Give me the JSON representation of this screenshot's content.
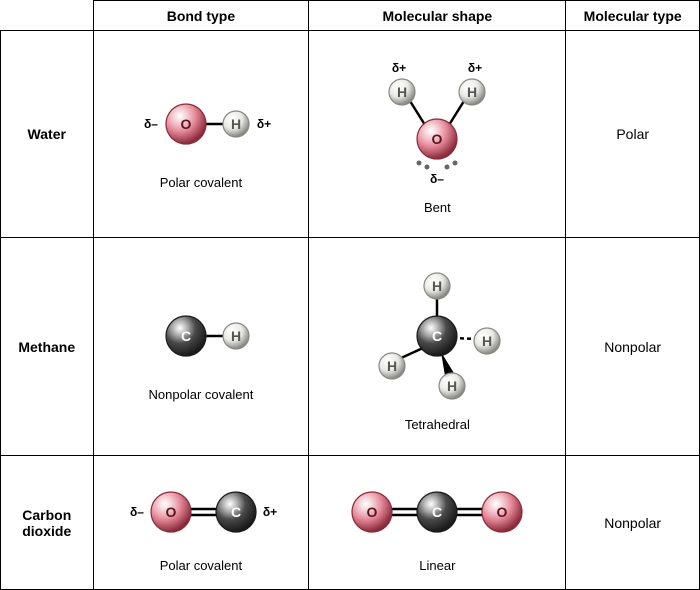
{
  "headers": {
    "bond": "Bond type",
    "shape": "Molecular shape",
    "type": "Molecular type"
  },
  "rows": {
    "water": {
      "name": "Water",
      "bond_caption": "Polar covalent",
      "shape_caption": "Bent",
      "mol_type": "Polar",
      "delta_minus": "δ–",
      "delta_plus": "δ+"
    },
    "methane": {
      "name": "Methane",
      "bond_caption": "Nonpolar covalent",
      "shape_caption": "Tetrahedral",
      "mol_type": "Nonpolar"
    },
    "co2": {
      "name": "Carbon dioxide",
      "bond_caption": "Polar covalent",
      "shape_caption": "Linear",
      "mol_type": "Nonpolar",
      "delta_minus": "δ–",
      "delta_plus": "δ+"
    }
  },
  "atoms": {
    "O": {
      "label": "O",
      "fill": "#e68a9a",
      "stroke": "#8a2a3a",
      "text": "#5a1520",
      "r": 20
    },
    "C": {
      "label": "C",
      "fill": "#4a4a4a",
      "stroke": "#1a1a1a",
      "text": "#ffffff",
      "r": 20
    },
    "H": {
      "label": "H",
      "fill": "#e8e8e4",
      "stroke": "#888884",
      "text": "#555550",
      "r": 13
    }
  },
  "style": {
    "bond_stroke": "#000000",
    "bond_width": 2.5,
    "double_gap": 3,
    "lone_pair_r": 2.5,
    "lone_pair_fill": "#666666",
    "label_font": "bold 14px Arial",
    "delta_font": "bold 12px Arial",
    "delta_color": "#000000",
    "caption_fontsize": 13
  }
}
